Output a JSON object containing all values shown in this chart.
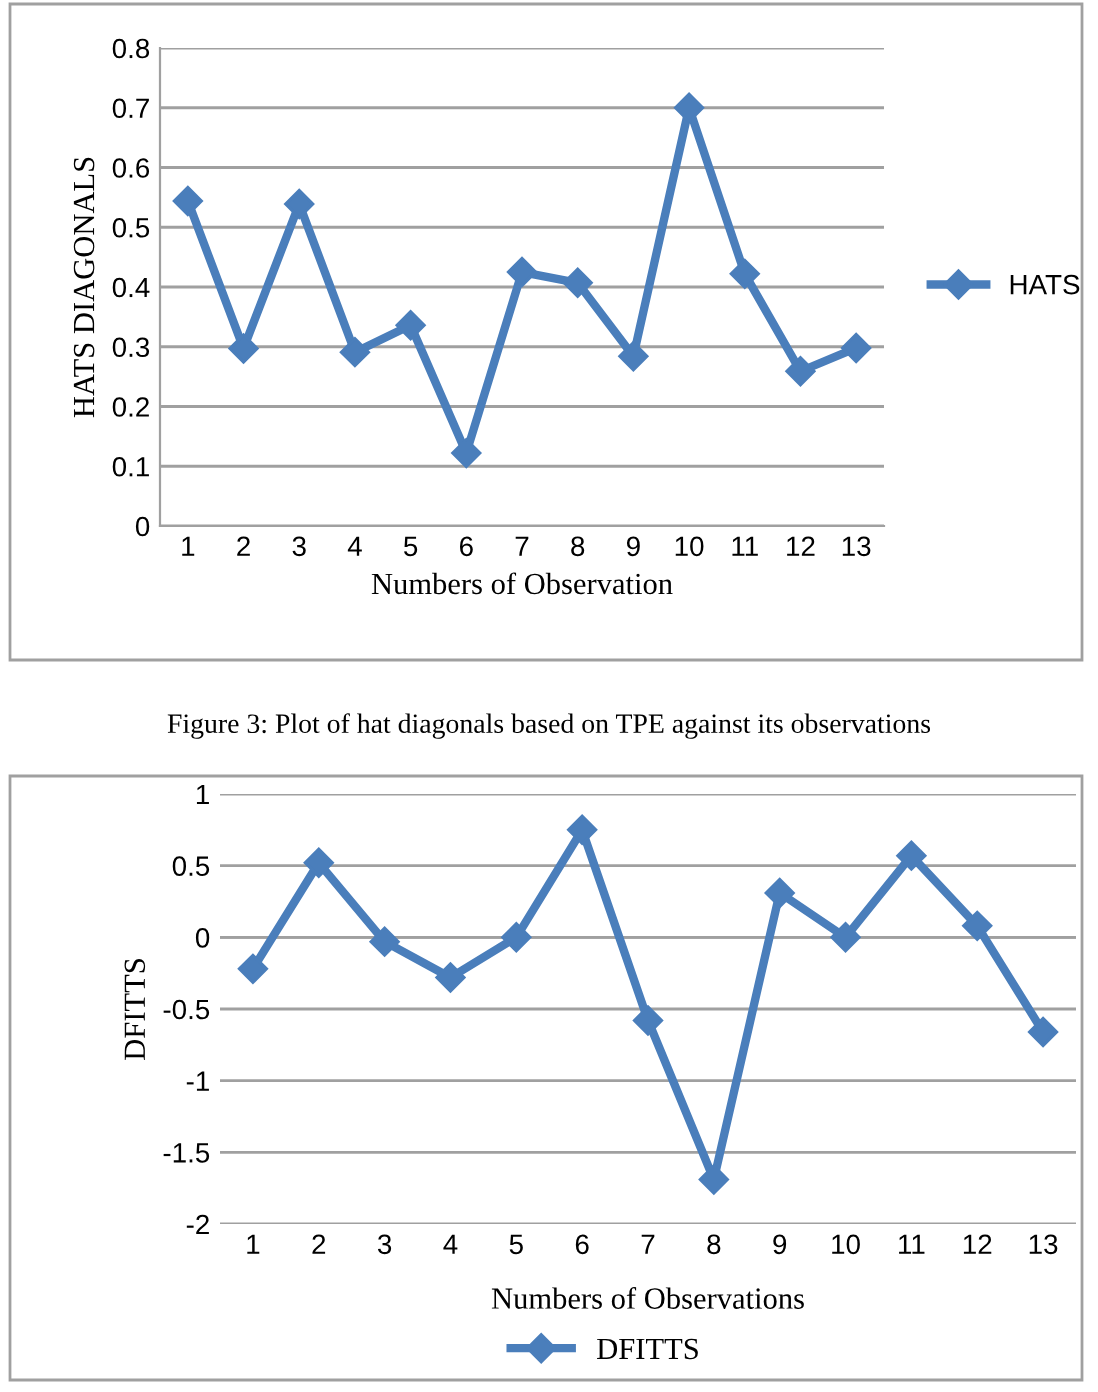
{
  "chart_data": [
    {
      "type": "line",
      "xlabel": "Numbers of Observation",
      "ylabel": "HATS DIAGONALS",
      "categories": [
        "1",
        "2",
        "3",
        "4",
        "5",
        "6",
        "7",
        "8",
        "9",
        "10",
        "11",
        "12",
        "13"
      ],
      "series": [
        {
          "name": "HATS",
          "color": "#4a7ebb",
          "values": [
            0.544,
            0.297,
            0.539,
            0.291,
            0.336,
            0.122,
            0.425,
            0.407,
            0.284,
            0.7,
            0.422,
            0.259,
            0.298
          ]
        }
      ],
      "ylim": [
        0,
        0.8
      ],
      "yticks": [
        0,
        0.1,
        0.2,
        0.3,
        0.4,
        0.5,
        0.6,
        0.7,
        0.8
      ],
      "grid": "y",
      "legend": "right",
      "marker": "diamond",
      "line_style": "solid",
      "annotations": [
        "Figure 3: Plot of hat diagonals based on TPE against its observations"
      ]
    },
    {
      "type": "line",
      "xlabel": "Numbers of Observations",
      "ylabel": "DFITTS",
      "categories": [
        "1",
        "2",
        "3",
        "4",
        "5",
        "6",
        "7",
        "8",
        "9",
        "10",
        "11",
        "12",
        "13"
      ],
      "series": [
        {
          "name": "DFITTS",
          "color": "#4a7ebb",
          "values": [
            -0.22,
            0.52,
            -0.03,
            -0.28,
            0.0,
            0.75,
            -0.58,
            -1.69,
            0.31,
            0.0,
            0.57,
            0.08,
            -0.66
          ]
        }
      ],
      "ylim": [
        -2,
        1
      ],
      "yticks": [
        -2,
        -1.5,
        -1,
        -0.5,
        0,
        0.5,
        1
      ],
      "grid": "y",
      "legend": "bottom",
      "marker": "diamond",
      "line_style": "solid"
    }
  ]
}
